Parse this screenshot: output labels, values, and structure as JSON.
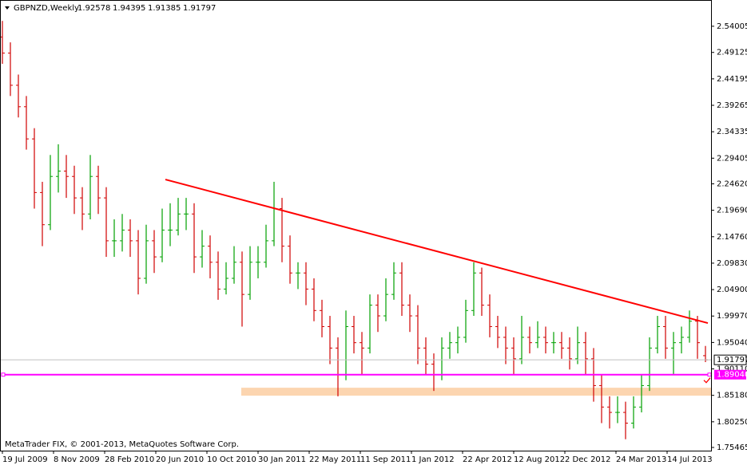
{
  "chart_data": {
    "type": "ohlc",
    "symbol": "GBPNZD,Weekly",
    "footer": "MetaTrader FIX, © 2001-2013, MetaQuotes Software Corp.",
    "up_color": "#00a000",
    "down_color": "#d00000",
    "bars": [
      [
        2.52,
        2.55,
        2.47,
        2.49
      ],
      [
        2.49,
        2.51,
        2.41,
        2.43
      ],
      [
        2.43,
        2.45,
        2.37,
        2.39
      ],
      [
        2.39,
        2.41,
        2.31,
        2.33
      ],
      [
        2.33,
        2.35,
        2.2,
        2.23
      ],
      [
        2.23,
        2.25,
        2.13,
        2.17
      ],
      [
        2.17,
        2.3,
        2.16,
        2.26
      ],
      [
        2.26,
        2.32,
        2.23,
        2.27
      ],
      [
        2.27,
        2.3,
        2.22,
        2.26
      ],
      [
        2.26,
        2.28,
        2.19,
        2.22
      ],
      [
        2.22,
        2.24,
        2.16,
        2.19
      ],
      [
        2.19,
        2.3,
        2.18,
        2.26
      ],
      [
        2.26,
        2.28,
        2.19,
        2.22
      ],
      [
        2.22,
        2.24,
        2.11,
        2.14
      ],
      [
        2.14,
        2.18,
        2.11,
        2.14
      ],
      [
        2.14,
        2.19,
        2.12,
        2.16
      ],
      [
        2.16,
        2.18,
        2.11,
        2.14
      ],
      [
        2.14,
        2.16,
        2.04,
        2.07
      ],
      [
        2.07,
        2.17,
        2.06,
        2.14
      ],
      [
        2.14,
        2.16,
        2.08,
        2.11
      ],
      [
        2.11,
        2.2,
        2.1,
        2.16
      ],
      [
        2.16,
        2.21,
        2.13,
        2.16
      ],
      [
        2.16,
        2.22,
        2.15,
        2.19
      ],
      [
        2.19,
        2.22,
        2.16,
        2.19
      ],
      [
        2.19,
        2.21,
        2.08,
        2.11
      ],
      [
        2.11,
        2.16,
        2.09,
        2.13
      ],
      [
        2.13,
        2.15,
        2.07,
        2.1
      ],
      [
        2.1,
        2.12,
        2.03,
        2.05
      ],
      [
        2.05,
        2.1,
        2.04,
        2.07
      ],
      [
        2.07,
        2.13,
        2.06,
        2.1
      ],
      [
        2.1,
        2.12,
        1.98,
        2.04
      ],
      [
        2.04,
        2.13,
        2.03,
        2.1
      ],
      [
        2.1,
        2.13,
        2.07,
        2.1
      ],
      [
        2.1,
        2.17,
        2.09,
        2.14
      ],
      [
        2.14,
        2.25,
        2.13,
        2.2
      ],
      [
        2.2,
        2.22,
        2.1,
        2.13
      ],
      [
        2.13,
        2.15,
        2.06,
        2.08
      ],
      [
        2.08,
        2.1,
        2.05,
        2.08
      ],
      [
        2.08,
        2.1,
        2.02,
        2.05
      ],
      [
        2.05,
        2.07,
        1.99,
        2.01
      ],
      [
        2.01,
        2.03,
        1.96,
        1.98
      ],
      [
        1.98,
        2.0,
        1.91,
        1.94
      ],
      [
        1.94,
        1.96,
        1.85,
        1.89
      ],
      [
        1.89,
        2.01,
        1.88,
        1.98
      ],
      [
        1.98,
        2.0,
        1.93,
        1.95
      ],
      [
        1.95,
        1.97,
        1.89,
        1.94
      ],
      [
        1.94,
        2.04,
        1.93,
        2.02
      ],
      [
        2.02,
        2.04,
        1.97,
        2.0
      ],
      [
        2.0,
        2.07,
        1.99,
        2.04
      ],
      [
        2.04,
        2.1,
        2.03,
        2.08
      ],
      [
        2.08,
        2.1,
        2.0,
        2.02
      ],
      [
        2.02,
        2.04,
        1.97,
        2.0
      ],
      [
        2.0,
        2.02,
        1.91,
        1.94
      ],
      [
        1.94,
        1.96,
        1.89,
        1.91
      ],
      [
        1.91,
        1.93,
        1.86,
        1.89
      ],
      [
        1.89,
        1.96,
        1.88,
        1.94
      ],
      [
        1.94,
        1.97,
        1.92,
        1.95
      ],
      [
        1.95,
        1.98,
        1.93,
        1.96
      ],
      [
        1.96,
        2.03,
        1.95,
        2.01
      ],
      [
        2.01,
        2.1,
        2.0,
        2.08
      ],
      [
        2.08,
        2.09,
        2.0,
        2.02
      ],
      [
        2.02,
        2.04,
        1.96,
        1.98
      ],
      [
        1.98,
        2.0,
        1.94,
        1.96
      ],
      [
        1.96,
        1.98,
        1.91,
        1.94
      ],
      [
        1.94,
        1.96,
        1.89,
        1.92
      ],
      [
        1.92,
        2.0,
        1.91,
        1.96
      ],
      [
        1.96,
        1.98,
        1.93,
        1.95
      ],
      [
        1.95,
        1.99,
        1.94,
        1.96
      ],
      [
        1.96,
        1.98,
        1.93,
        1.95
      ],
      [
        1.95,
        1.97,
        1.93,
        1.95
      ],
      [
        1.95,
        1.97,
        1.92,
        1.94
      ],
      [
        1.94,
        1.96,
        1.9,
        1.92
      ],
      [
        1.92,
        1.98,
        1.91,
        1.95
      ],
      [
        1.95,
        1.97,
        1.89,
        1.92
      ],
      [
        1.92,
        1.94,
        1.84,
        1.87
      ],
      [
        1.87,
        1.89,
        1.8,
        1.83
      ],
      [
        1.83,
        1.85,
        1.79,
        1.82
      ],
      [
        1.82,
        1.85,
        1.8,
        1.82
      ],
      [
        1.82,
        1.84,
        1.77,
        1.8
      ],
      [
        1.8,
        1.85,
        1.79,
        1.83
      ],
      [
        1.83,
        1.89,
        1.82,
        1.87
      ],
      [
        1.87,
        1.96,
        1.86,
        1.94
      ],
      [
        1.94,
        2.0,
        1.93,
        1.98
      ],
      [
        1.98,
        2.0,
        1.92,
        1.94
      ],
      [
        1.94,
        1.97,
        1.89,
        1.95
      ],
      [
        1.95,
        1.98,
        1.93,
        1.96
      ],
      [
        1.96,
        2.01,
        1.95,
        1.99
      ],
      [
        1.99,
        2.0,
        1.92,
        1.95
      ],
      [
        1.92578,
        1.94395,
        1.91385,
        1.91797
      ]
    ],
    "ylim": [
      1.7487,
      2.589
    ],
    "yticks": [
      2.54005,
      2.49125,
      2.44195,
      2.39265,
      2.34335,
      2.29405,
      {
        "value": 2.2462,
        "label": "2.24620"
      },
      {
        "value": 2.1969,
        "label": "2.19690"
      },
      {
        "value": 2.1476,
        "label": "2.14760"
      },
      {
        "value": 2.0983,
        "label": "2.09830"
      },
      {
        "value": 2.049,
        "label": "2.04900"
      },
      {
        "value": 1.9997,
        "label": "1.99970"
      },
      {
        "value": 1.9504,
        "label": "1.95040"
      },
      {
        "value": 1.9011,
        "label": "1.90110"
      },
      {
        "value": 1.8518,
        "label": "1.85180"
      },
      {
        "value": 1.8025,
        "label": "1.80250"
      },
      1.75465
    ],
    "xticks": [
      {
        "value": 0,
        "label": "19 Jul 2009"
      },
      {
        "value": 6.4,
        "label": "8 Nov 2009"
      },
      {
        "value": 12.8,
        "label": "28 Feb 2010"
      },
      {
        "value": 19.2,
        "label": "20 Jun 2010"
      },
      {
        "value": 25.6,
        "label": "10 Oct 2010"
      },
      {
        "value": 32,
        "label": "30 Jan 2011"
      },
      {
        "value": 38.4,
        "label": "22 May 2011"
      },
      {
        "value": 44.8,
        "label": "11 Sep 2011"
      },
      {
        "value": 51.2,
        "label": "1 Jan 2012"
      },
      {
        "value": 57.6,
        "label": "22 Apr 2012"
      },
      {
        "value": 64,
        "label": "12 Aug 2012"
      },
      {
        "value": 70.4,
        "label": "2 Dec 2012"
      },
      {
        "value": 76.8,
        "label": "24 Mar 2013"
      },
      {
        "value": 83.2,
        "label": "14 Jul 2013"
      }
    ],
    "level": {
      "value": 1.8904,
      "label": "1.89040",
      "color": "#ff00ff"
    },
    "trendline": {
      "x": [
        20.4,
        88.3
      ],
      "y": [
        2.2543,
        1.9866
      ],
      "color": "#ff0000"
    },
    "zone": {
      "xlim": [
        29.9,
        88.7
      ],
      "ylim": [
        1.8512,
        1.866
      ],
      "color": "#fcd5b0"
    }
  }
}
